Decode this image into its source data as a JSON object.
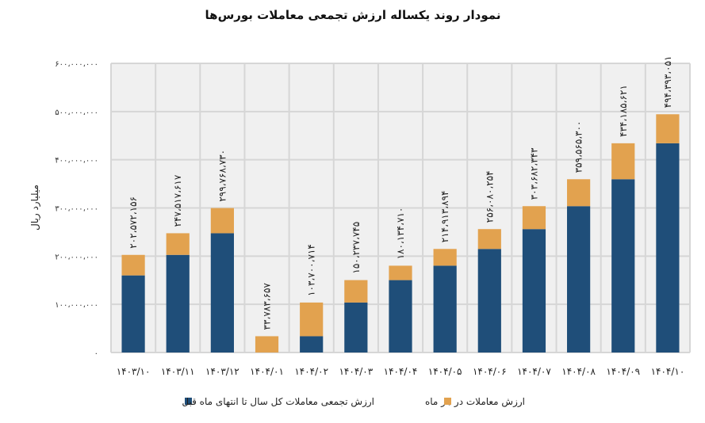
{
  "chart_data": {
    "type": "bar",
    "stacked": true,
    "title": "نمودار روند یکساله ارزش تجمعی معاملات بورس‌ها",
    "ylabel": "میلیارد ریال",
    "xlabel": "",
    "ylim": [
      0,
      600000000
    ],
    "yticks": [
      0,
      100000000,
      200000000,
      300000000,
      400000000,
      500000000,
      600000000
    ],
    "ytick_labels": [
      "۰",
      "۱۰۰،۰۰۰،۰۰۰",
      "۲۰۰،۰۰۰،۰۰۰",
      "۳۰۰،۰۰۰،۰۰۰",
      "۴۰۰،۰۰۰،۰۰۰",
      "۵۰۰،۰۰۰،۰۰۰",
      "۶۰۰،۰۰۰،۰۰۰"
    ],
    "categories": [
      "۱۴۰۳/۱۰",
      "۱۴۰۳/۱۱",
      "۱۴۰۳/۱۲",
      "۱۴۰۴/۰۱",
      "۱۴۰۴/۰۲",
      "۱۴۰۴/۰۳",
      "۱۴۰۴/۰۴",
      "۱۴۰۴/۰۵",
      "۱۴۰۴/۰۶",
      "۱۴۰۴/۰۷",
      "۱۴۰۴/۰۸",
      "۱۴۰۴/۰۹",
      "۱۴۰۴/۱۰"
    ],
    "series": [
      {
        "name": "ارزش تجمعی معاملات کل سال تا انتهای ماه قبل",
        "color": "#1f4e79",
        "values": [
          160000000,
          202572156,
          247517617,
          0,
          33783657,
          103700714,
          150237745,
          180134710,
          214913894,
          256080254,
          303682343,
          359565300,
          434185621
        ]
      },
      {
        "name": "ارزش معاملات در هر ماه",
        "color": "#e2a24f",
        "values": [
          42572156,
          44945461,
          52251113,
          33783657,
          69917057,
          46537031,
          29896965,
          34779184,
          41166360,
          47602089,
          55882957,
          74620321,
          60207430
        ]
      }
    ],
    "totals": [
      202572156,
      247517617,
      299768730,
      33783657,
      103700714,
      150237745,
      180134710,
      214913894,
      256080254,
      303682343,
      359565300,
      434185621,
      494393051
    ],
    "total_labels": [
      "۲۰۲،۵۷۲،۱۵۶",
      "۲۴۷،۵۱۷،۶۱۷",
      "۲۹۹،۷۶۸،۷۳۰",
      "۳۳،۷۸۳،۶۵۷",
      "۱۰۳،۷۰۰،۷۱۴",
      "۱۵۰،۲۳۷،۷۴۵",
      "۱۸۰،۱۳۴،۷۱۰",
      "۲۱۴،۹۱۳،۸۹۴",
      "۲۵۶،۰۸۰،۲۵۴",
      "۳۰۳،۶۸۲،۳۴۳",
      "۳۵۹،۵۶۵،۳۰۰",
      "۴۳۴،۱۸۵،۶۲۱",
      "۴۹۴،۳۹۳،۰۵۱"
    ],
    "grid": true,
    "legend": "bottom"
  }
}
